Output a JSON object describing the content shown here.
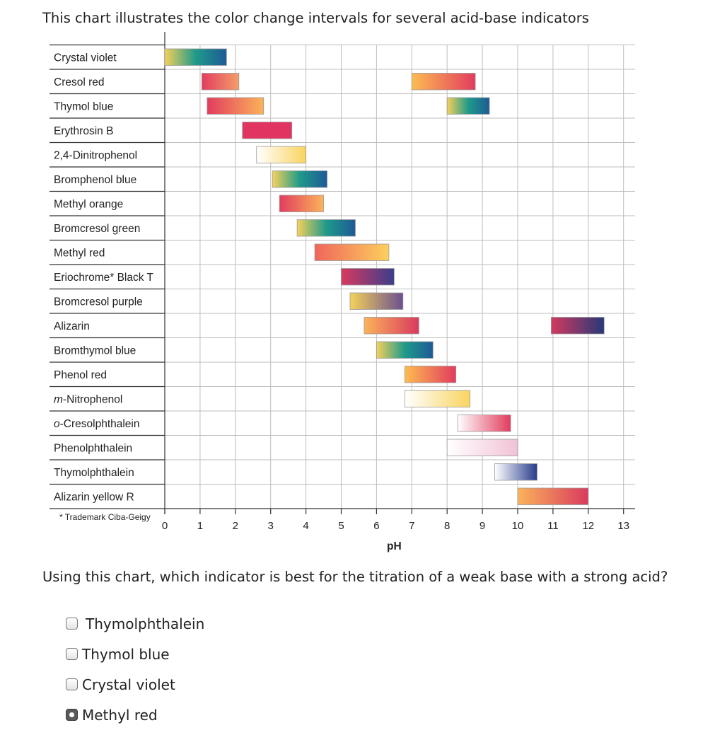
{
  "intro_text": "This chart illustrates the color change intervals for several acid-base indicators",
  "question_text": "Using this chart, which indicator is best for the titration of a weak base with a strong acid?",
  "options": [
    {
      "label": "Thymolphthalein",
      "checked": false
    },
    {
      "label": "Thymol blue",
      "checked": false
    },
    {
      "label": "Crystal violet",
      "checked": false
    },
    {
      "label": "Methyl red",
      "checked": true
    }
  ],
  "chart_data": {
    "type": "bar",
    "xlabel": "pH",
    "xlim": [
      0,
      13
    ],
    "xticks": [
      0,
      1,
      2,
      3,
      4,
      5,
      6,
      7,
      8,
      9,
      10,
      11,
      12,
      13
    ],
    "grid": true,
    "footnote": "* Trademark Ciba-Geigy",
    "indicators": [
      {
        "name": "Crystal violet",
        "ranges": [
          {
            "start": 0.0,
            "end": 1.75,
            "colors": [
              "#f5d15a",
              "#1f9a8a",
              "#1e5a96"
            ]
          }
        ]
      },
      {
        "name": "Cresol red",
        "ranges": [
          {
            "start": 1.05,
            "end": 2.1,
            "colors": [
              "#e23c5e",
              "#f49e6a"
            ]
          },
          {
            "start": 7.0,
            "end": 8.8,
            "colors": [
              "#fdbc52",
              "#e23c5e"
            ]
          }
        ]
      },
      {
        "name": "Thymol blue",
        "ranges": [
          {
            "start": 1.2,
            "end": 2.8,
            "colors": [
              "#e23c5e",
              "#fbb35a"
            ]
          },
          {
            "start": 8.0,
            "end": 9.2,
            "colors": [
              "#f5d15a",
              "#1f9a8a",
              "#1e5a96"
            ]
          }
        ]
      },
      {
        "name": "Erythrosin B",
        "ranges": [
          {
            "start": 2.2,
            "end": 3.6,
            "colors": [
              "#e23460",
              "#e23460"
            ]
          }
        ]
      },
      {
        "name": "2,4-Dinitrophenol",
        "ranges": [
          {
            "start": 2.6,
            "end": 4.0,
            "colors": [
              "#ffffff",
              "#f9d460"
            ]
          }
        ]
      },
      {
        "name": "Bromphenol blue",
        "ranges": [
          {
            "start": 3.05,
            "end": 4.6,
            "colors": [
              "#f5d15a",
              "#1f9a8a",
              "#1e5a96"
            ]
          }
        ]
      },
      {
        "name": "Methyl orange",
        "ranges": [
          {
            "start": 3.25,
            "end": 4.5,
            "colors": [
              "#e23c5e",
              "#fbb35a"
            ]
          }
        ]
      },
      {
        "name": "Bromcresol green",
        "ranges": [
          {
            "start": 3.75,
            "end": 5.4,
            "colors": [
              "#f5d15a",
              "#1f9a8a",
              "#1e5a96"
            ]
          }
        ]
      },
      {
        "name": "Methyl red",
        "ranges": [
          {
            "start": 4.25,
            "end": 6.35,
            "colors": [
              "#f0655a",
              "#fdd05e"
            ]
          }
        ]
      },
      {
        "name": "Eriochrome* Black T",
        "ranges": [
          {
            "start": 5.0,
            "end": 6.5,
            "colors": [
              "#d93a5e",
              "#3b3d8c"
            ]
          }
        ]
      },
      {
        "name": "Bromcresol purple",
        "ranges": [
          {
            "start": 5.25,
            "end": 6.75,
            "colors": [
              "#f5d15a",
              "#6b4f8f"
            ]
          }
        ]
      },
      {
        "name": "Alizarin",
        "ranges": [
          {
            "start": 5.65,
            "end": 7.2,
            "colors": [
              "#fbb35a",
              "#d93a5e"
            ]
          },
          {
            "start": 10.95,
            "end": 12.45,
            "colors": [
              "#d23a5e",
              "#283878"
            ]
          }
        ]
      },
      {
        "name": "Bromthymol blue",
        "ranges": [
          {
            "start": 6.0,
            "end": 7.6,
            "colors": [
              "#f5d15a",
              "#1f9a8a",
              "#1e5a96"
            ]
          }
        ]
      },
      {
        "name": "Phenol red",
        "ranges": [
          {
            "start": 6.8,
            "end": 8.25,
            "colors": [
              "#fdbc52",
              "#e23c5e"
            ]
          }
        ]
      },
      {
        "name": "m-Nitrophenol",
        "name_italic_prefix": "m",
        "name_rest": "-Nitrophenol",
        "ranges": [
          {
            "start": 6.8,
            "end": 8.65,
            "colors": [
              "#ffffff",
              "#f9d460"
            ]
          }
        ]
      },
      {
        "name": "o-Cresolphthalein",
        "name_italic_prefix": "o",
        "name_rest": "-Cresolphthalein",
        "ranges": [
          {
            "start": 8.3,
            "end": 9.8,
            "colors": [
              "#ffffff",
              "#e23c5e"
            ]
          }
        ]
      },
      {
        "name": "Phenolphthalein",
        "ranges": [
          {
            "start": 8.0,
            "end": 10.0,
            "colors": [
              "#ffffff",
              "#f1c2d6"
            ]
          }
        ]
      },
      {
        "name": "Thymolphthalein",
        "ranges": [
          {
            "start": 9.35,
            "end": 10.55,
            "colors": [
              "#ffffff",
              "#283c8c"
            ]
          }
        ]
      },
      {
        "name": "Alizarin yellow R",
        "ranges": [
          {
            "start": 10.0,
            "end": 12.0,
            "colors": [
              "#fbb35a",
              "#d93a5e"
            ]
          }
        ]
      }
    ]
  }
}
